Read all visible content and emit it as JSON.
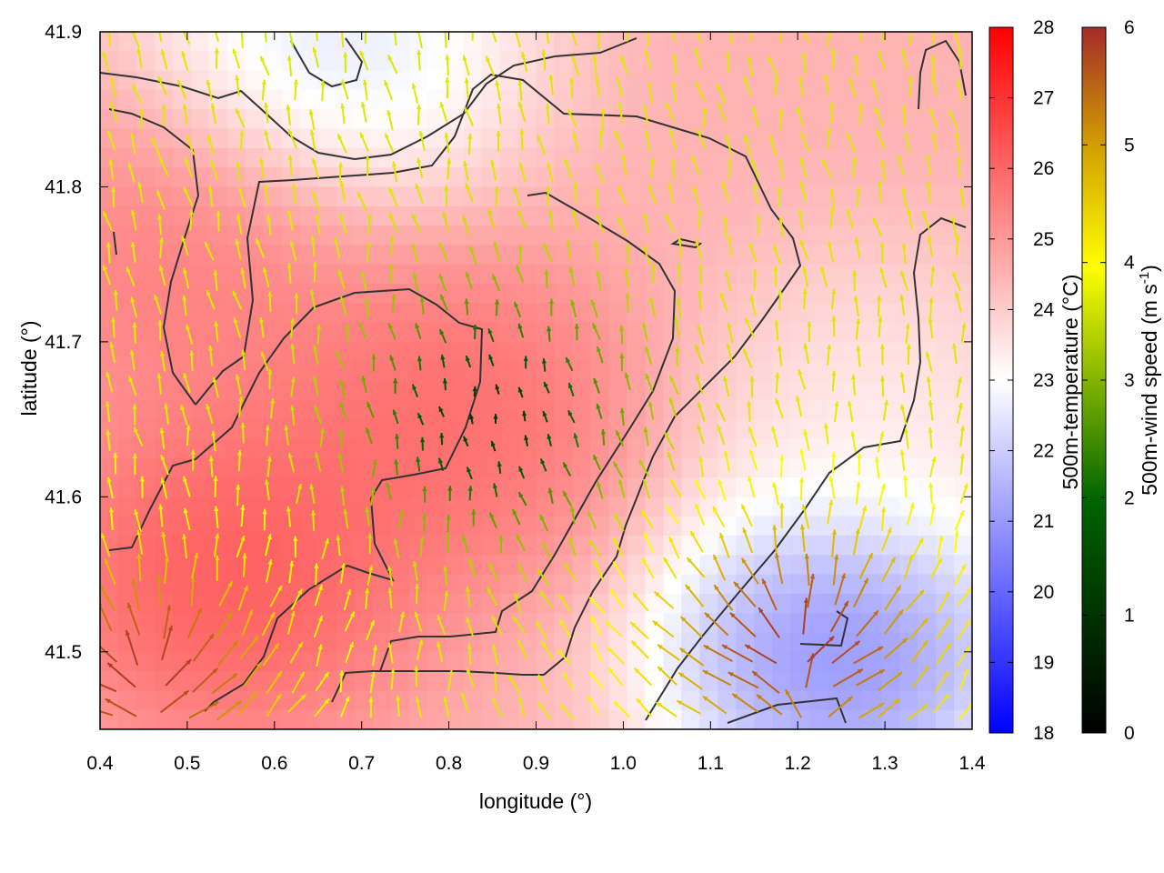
{
  "chart_data": {
    "type": "heatmap",
    "subtype": "scalar field with wind vectors and contour lines",
    "xlabel": "longitude (°)",
    "ylabel": "latitude (°)",
    "xlim": [
      0.4,
      1.4
    ],
    "ylim": [
      41.45,
      41.9
    ],
    "x_ticks": [
      "0.4",
      "0.5",
      "0.6",
      "0.7",
      "0.8",
      "0.9",
      "1.0",
      "1.1",
      "1.2",
      "1.3",
      "1.4"
    ],
    "y_ticks": [
      "41.5",
      "41.6",
      "41.7",
      "41.8",
      "41.9"
    ],
    "grid": false,
    "colorbars": [
      {
        "label": "500m-temperature (°C)",
        "range": [
          18,
          28
        ],
        "ticks": [
          "18",
          "19",
          "20",
          "21",
          "22",
          "23",
          "24",
          "25",
          "26",
          "27",
          "28"
        ],
        "colormap": [
          "#0000ff",
          "#ffffff",
          "#ff0000"
        ]
      },
      {
        "label_main": "500m-wind speed (m s",
        "label_sup": "-1",
        "label_end": ")",
        "range": [
          0,
          6
        ],
        "ticks": [
          "0",
          "1",
          "2",
          "3",
          "4",
          "5",
          "6"
        ],
        "colormap": [
          "#000000",
          "#006400",
          "#ffff00",
          "#d2a000",
          "#a52a2a"
        ]
      }
    ],
    "temperature_features": [
      {
        "kind": "warm core",
        "lon": 0.8,
        "lat": 41.65,
        "temp": 26.5
      },
      {
        "kind": "warm region",
        "lon": 0.55,
        "lat": 41.55,
        "temp": 27
      },
      {
        "kind": "warm region",
        "lon": 0.5,
        "lat": 41.75,
        "temp": 26
      },
      {
        "kind": "cool pocket",
        "lon": 1.25,
        "lat": 41.5,
        "temp": 19
      },
      {
        "kind": "cool pocket",
        "lon": 0.67,
        "lat": 41.89,
        "temp": 21.5
      },
      {
        "kind": "mild band",
        "lon": 1.3,
        "lat": 41.65,
        "temp": 23
      }
    ],
    "wind_features": [
      {
        "kind": "calm center",
        "lon": 0.85,
        "lat": 41.65,
        "speed": 0.8
      },
      {
        "kind": "strong southwest outflow",
        "lon": 0.45,
        "lat": 41.48,
        "speed": 5.8
      },
      {
        "kind": "strong southeast outflow",
        "lon": 1.2,
        "lat": 41.5,
        "speed": 5.8
      }
    ]
  },
  "colors": {
    "contour": "#333333",
    "arrow_low": "#000000",
    "arrow_high": "#a52a2a"
  }
}
